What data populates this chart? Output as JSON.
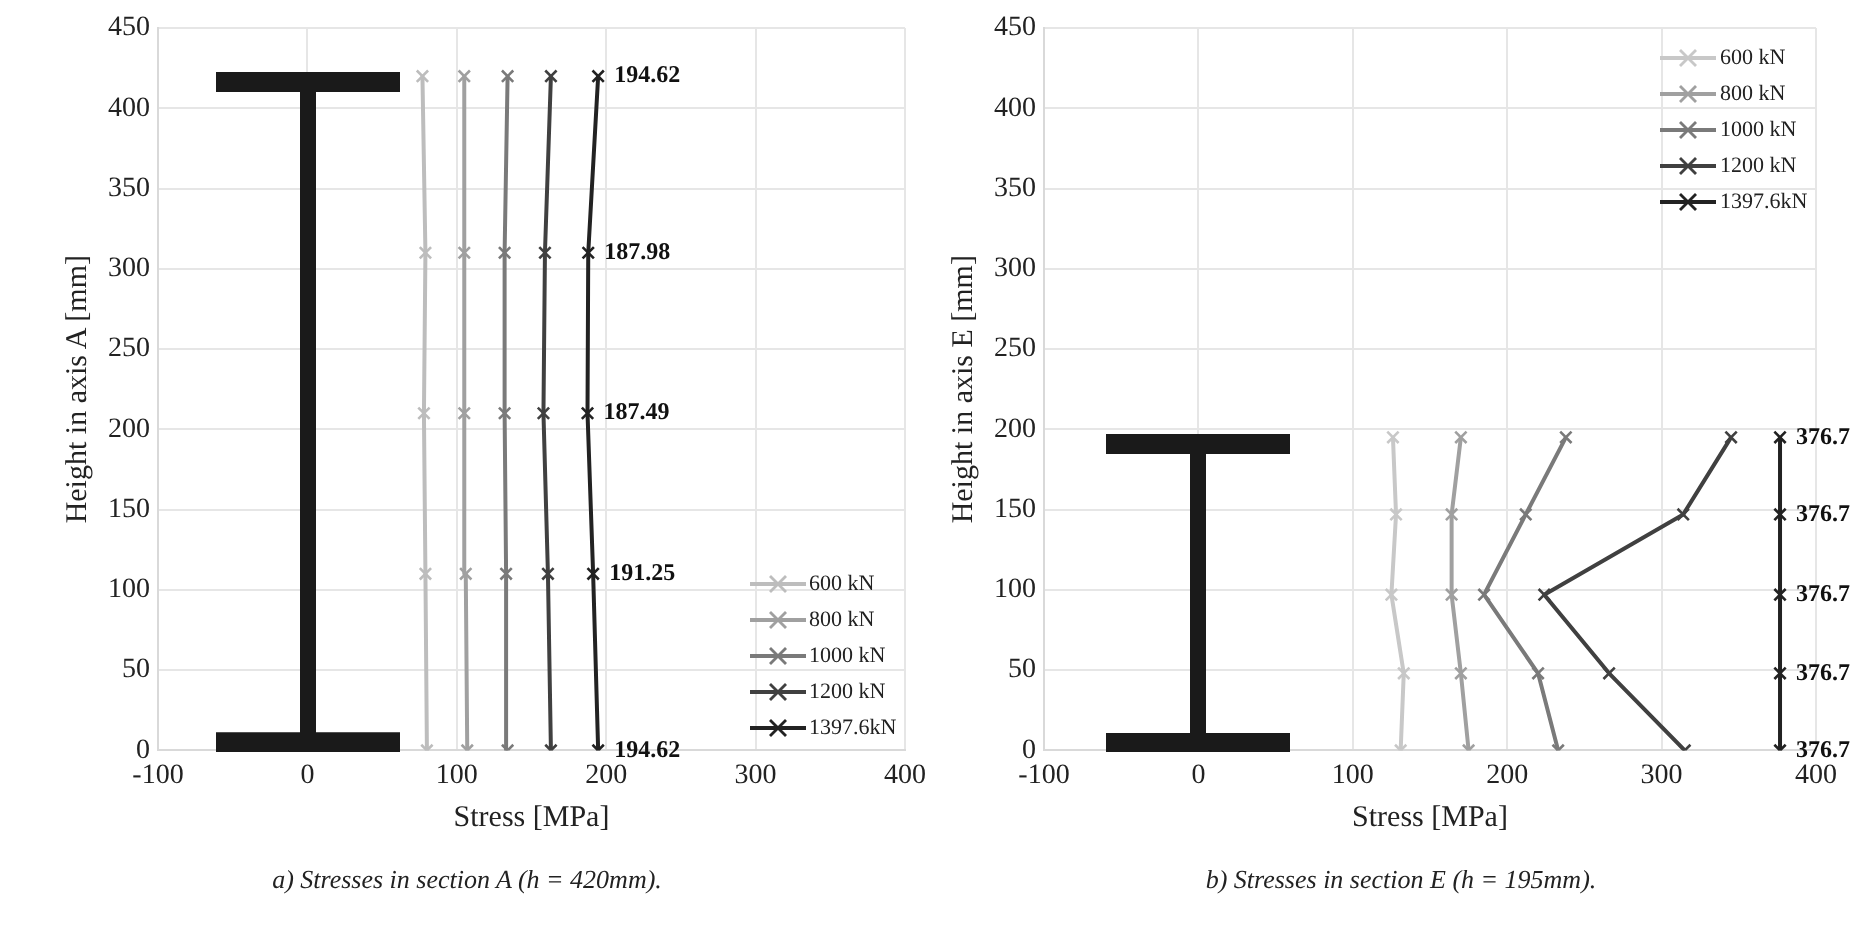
{
  "chart_data": [
    {
      "type": "line",
      "title": "a) Stresses in section A (h = 420mm).",
      "xlabel": "Stress [MPa]",
      "ylabel": "Height in axis A [mm]",
      "xlim": [
        -100,
        400
      ],
      "xticks": [
        -100,
        0,
        100,
        200,
        300,
        400
      ],
      "ylim": [
        0,
        450
      ],
      "yticks": [
        0,
        50,
        100,
        150,
        200,
        250,
        300,
        350,
        400,
        450
      ],
      "grid": true,
      "legend": "bottom right",
      "marker": "cross",
      "series": [
        {
          "name": "600 kN",
          "color": "#bdbdbd",
          "x": [
            80,
            79,
            78,
            79,
            77
          ],
          "values": [
            0,
            110,
            210,
            310,
            420
          ]
        },
        {
          "name": "800 kN",
          "color": "#a0a0a0",
          "x": [
            107,
            106,
            105,
            105,
            105
          ],
          "values": [
            0,
            110,
            210,
            310,
            420
          ]
        },
        {
          "name": "1000 kN",
          "color": "#7a7a7a",
          "x": [
            134,
            133,
            132,
            132,
            134
          ],
          "values": [
            0,
            110,
            210,
            310,
            420
          ]
        },
        {
          "name": "1200 kN",
          "color": "#404040",
          "x": [
            163,
            161,
            158,
            159,
            163
          ],
          "values": [
            0,
            110,
            210,
            310,
            420
          ]
        },
        {
          "name": "1397.6kN",
          "color": "#222222",
          "x": [
            194.62,
            191.25,
            187.49,
            187.98,
            194.62
          ],
          "values": [
            0,
            110,
            210,
            310,
            420
          ]
        }
      ],
      "annotations": [
        {
          "text": "194.62",
          "x": 194.62,
          "y": 0
        },
        {
          "text": "191.25",
          "x": 191.25,
          "y": 110
        },
        {
          "text": "187.49",
          "x": 187.49,
          "y": 210
        },
        {
          "text": "187.98",
          "x": 187.98,
          "y": 310
        },
        {
          "text": "194.62",
          "x": 194.62,
          "y": 420
        }
      ]
    },
    {
      "type": "line",
      "title": "b) Stresses in section E (h = 195mm).",
      "xlabel": "Stress [MPa]",
      "ylabel": "Height in axis E [mm]",
      "xlim": [
        -100,
        400
      ],
      "xticks": [
        -100,
        0,
        100,
        200,
        300,
        400
      ],
      "ylim": [
        0,
        450
      ],
      "yticks": [
        0,
        50,
        100,
        150,
        200,
        250,
        300,
        350,
        400,
        450
      ],
      "grid": true,
      "legend": "top right",
      "marker": "cross",
      "series": [
        {
          "name": "600 kN",
          "color": "#c8c8c8",
          "x": [
            131,
            133,
            125,
            128,
            126
          ],
          "values": [
            0,
            48,
            97,
            147,
            195
          ]
        },
        {
          "name": "800 kN",
          "color": "#a0a0a0",
          "x": [
            175,
            170,
            164,
            164,
            170
          ],
          "values": [
            0,
            48,
            97,
            147,
            195
          ]
        },
        {
          "name": "1000 kN",
          "color": "#7a7a7a",
          "x": [
            233,
            220,
            185,
            212,
            238
          ],
          "values": [
            0,
            48,
            97,
            147,
            195
          ]
        },
        {
          "name": "1200 kN",
          "color": "#404040",
          "x": [
            315,
            266,
            224,
            314,
            345
          ],
          "values": [
            0,
            48,
            97,
            147,
            195
          ]
        },
        {
          "name": "1397.6kN",
          "color": "#222222",
          "x": [
            376.7,
            376.7,
            376.7,
            376.7,
            376.7
          ],
          "values": [
            0,
            48,
            97,
            147,
            195
          ]
        }
      ],
      "annotations": [
        {
          "text": "376.7",
          "x": 376.7,
          "y": 0
        },
        {
          "text": "376.7",
          "x": 376.7,
          "y": 48
        },
        {
          "text": "376.7",
          "x": 376.7,
          "y": 97
        },
        {
          "text": "376.7",
          "x": 376.7,
          "y": 147
        },
        {
          "text": "376.7",
          "x": 376.7,
          "y": 195
        }
      ]
    }
  ]
}
